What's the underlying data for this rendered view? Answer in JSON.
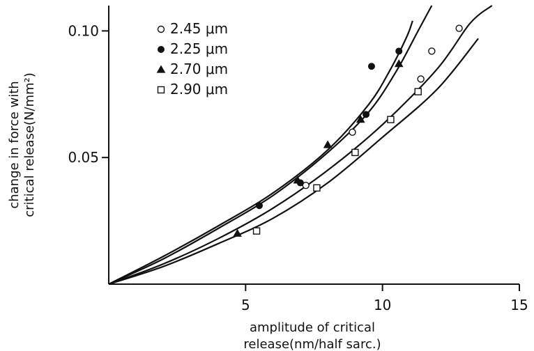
{
  "chart_data": {
    "type": "scatter",
    "title": "",
    "xlabel_line1": "amplitude of critical",
    "xlabel_line2": "release(nm/half sarc.)",
    "ylabel_line1": "change in force with",
    "ylabel_line2": "critical release(N/mm²)",
    "xlim": [
      0,
      15
    ],
    "ylim": [
      0,
      0.11
    ],
    "xticks": [
      {
        "value": 5,
        "label": "5"
      },
      {
        "value": 10,
        "label": "10"
      },
      {
        "value": 15,
        "label": "15"
      }
    ],
    "yticks": [
      {
        "value": 0.05,
        "label": "0.05"
      },
      {
        "value": 0.1,
        "label": "0.10"
      }
    ],
    "legend_placement": "top-left",
    "series": [
      {
        "name": "2.45 μm",
        "marker": "circle-open",
        "points": [
          [
            7.2,
            0.039
          ],
          [
            8.9,
            0.06
          ],
          [
            11.4,
            0.081
          ],
          [
            11.8,
            0.092
          ],
          [
            12.8,
            0.101
          ]
        ]
      },
      {
        "name": "2.25 μm",
        "marker": "circle-filled",
        "points": [
          [
            5.5,
            0.031
          ],
          [
            7.0,
            0.04
          ],
          [
            9.4,
            0.067
          ],
          [
            9.6,
            0.086
          ],
          [
            10.6,
            0.092
          ]
        ]
      },
      {
        "name": "2.70 μm",
        "marker": "triangle-filled",
        "points": [
          [
            4.7,
            0.02
          ],
          [
            6.9,
            0.041
          ],
          [
            8.0,
            0.055
          ],
          [
            9.2,
            0.065
          ],
          [
            10.6,
            0.087
          ]
        ]
      },
      {
        "name": "2.90 μm",
        "marker": "square-open",
        "points": [
          [
            5.4,
            0.021
          ],
          [
            7.6,
            0.038
          ],
          [
            9.0,
            0.052
          ],
          [
            10.3,
            0.065
          ],
          [
            11.3,
            0.076
          ]
        ]
      }
    ],
    "fit_curves": [
      {
        "points": [
          [
            0,
            0
          ],
          [
            2,
            0.01
          ],
          [
            4,
            0.022
          ],
          [
            6,
            0.035
          ],
          [
            8,
            0.052
          ],
          [
            9.5,
            0.068
          ],
          [
            10.5,
            0.084
          ],
          [
            11.3,
            0.1
          ],
          [
            11.8,
            0.11
          ]
        ]
      },
      {
        "points": [
          [
            0,
            0
          ],
          [
            2,
            0.011
          ],
          [
            4,
            0.023
          ],
          [
            6,
            0.036
          ],
          [
            8,
            0.053
          ],
          [
            9.5,
            0.071
          ],
          [
            10.3,
            0.085
          ],
          [
            10.9,
            0.098
          ],
          [
            11.1,
            0.104
          ]
        ]
      },
      {
        "points": [
          [
            0,
            0
          ],
          [
            2,
            0.008
          ],
          [
            4,
            0.018
          ],
          [
            6,
            0.03
          ],
          [
            8,
            0.045
          ],
          [
            10,
            0.063
          ],
          [
            12,
            0.085
          ],
          [
            13.2,
            0.103
          ],
          [
            14.0,
            0.11
          ]
        ]
      },
      {
        "points": [
          [
            0,
            0
          ],
          [
            2,
            0.007
          ],
          [
            4,
            0.016
          ],
          [
            6,
            0.026
          ],
          [
            8,
            0.04
          ],
          [
            10,
            0.058
          ],
          [
            12,
            0.077
          ],
          [
            13.5,
            0.097
          ]
        ]
      }
    ]
  }
}
